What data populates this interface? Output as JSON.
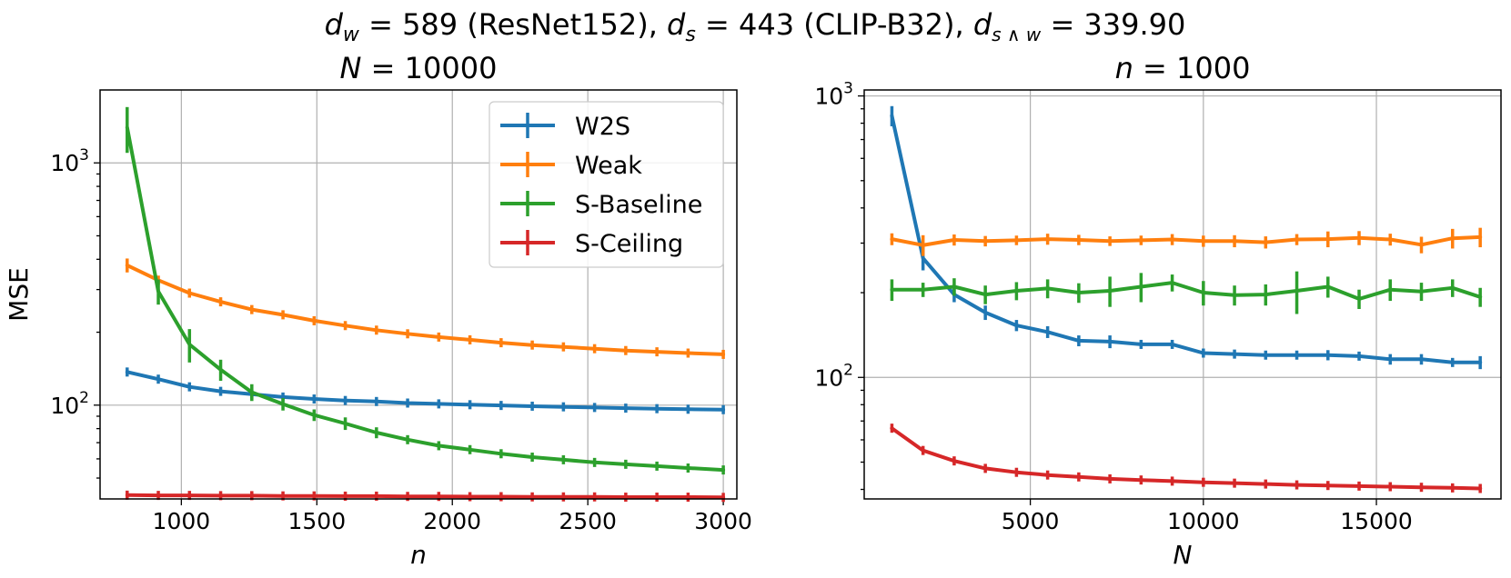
{
  "figure_title": {
    "dw_label": "d",
    "dw_sub": "w",
    "dw_value": " = 589 (ResNet152), ",
    "ds_label": "d",
    "ds_sub": "s",
    "ds_value": " = 443 (CLIP-B32), ",
    "dsw_label": "d",
    "dsw_sub": "s ∧ w",
    "dsw_value": " = 339.90"
  },
  "colors": {
    "W2S": "#1f77b4",
    "Weak": "#ff7f0e",
    "S-Baseline": "#2ca02c",
    "S-Ceiling": "#d62728"
  },
  "chart_data": [
    {
      "type": "line",
      "title_var": "N",
      "title_value": " = 10000",
      "xlabel": "n",
      "ylabel": "MSE",
      "yscale": "log",
      "xlim": [
        700,
        3050
      ],
      "ylim": [
        41,
        2000
      ],
      "xticks": [
        1000,
        1500,
        2000,
        2500,
        3000
      ],
      "xtick_labels": [
        "1000",
        "1500",
        "2000",
        "2500",
        "3000"
      ],
      "yticks": [
        {
          "value": 100,
          "base": "10",
          "exp": "2"
        },
        {
          "value": 1000,
          "base": "10",
          "exp": "3"
        }
      ],
      "legend": {
        "position": "top-right",
        "entries": [
          "W2S",
          "Weak",
          "S-Baseline",
          "S-Ceiling"
        ]
      },
      "x": [
        800,
        915,
        1030,
        1145,
        1260,
        1375,
        1490,
        1605,
        1720,
        1835,
        1950,
        2065,
        2180,
        2295,
        2410,
        2525,
        2640,
        2755,
        2870,
        3000
      ],
      "series": [
        {
          "name": "W2S",
          "values": [
            137,
            128,
            119,
            114,
            111,
            108,
            106,
            104.5,
            103.5,
            102,
            101.2,
            100.4,
            99.7,
            99,
            98.4,
            97.8,
            97.2,
            96.7,
            96.2,
            95.8
          ],
          "err": [
            4,
            4,
            3,
            2,
            2,
            2,
            1.5,
            1.5,
            1.5,
            1.5,
            1.5,
            1,
            1,
            1,
            1,
            1,
            1,
            1,
            1,
            1
          ]
        },
        {
          "name": "Weak",
          "values": [
            378,
            328,
            290,
            267,
            248,
            236,
            223,
            213,
            204,
            197,
            191,
            186,
            181,
            177,
            174,
            171,
            168,
            166,
            164,
            162
          ],
          "err": [
            25,
            14,
            12,
            9,
            8,
            8,
            6,
            5,
            5,
            4,
            4,
            3,
            3,
            3,
            3,
            2,
            2,
            2,
            2,
            2
          ]
        },
        {
          "name": "S-Baseline",
          "values": [
            1400,
            295,
            178,
            140,
            113,
            101,
            91,
            84,
            77,
            72,
            68,
            65.5,
            63,
            61,
            59.5,
            58,
            57,
            56,
            55,
            54
          ],
          "err": [
            300,
            35,
            28,
            14,
            9,
            6,
            5,
            5,
            4,
            3,
            2.5,
            2,
            1.5,
            1.5,
            1.2,
            1.2,
            1,
            1,
            1,
            1
          ]
        },
        {
          "name": "S-Ceiling",
          "values": [
            42.5,
            42.4,
            42.4,
            42.3,
            42.3,
            42.2,
            42.2,
            42.1,
            42.1,
            42.0,
            42.0,
            41.9,
            41.9,
            41.8,
            41.8,
            41.8,
            41.7,
            41.7,
            41.7,
            41.6
          ],
          "err": [
            0.3,
            0.3,
            0.3,
            0.3,
            0.3,
            0.3,
            0.3,
            0.3,
            0.3,
            0.3,
            0.3,
            0.3,
            0.3,
            0.3,
            0.3,
            0.3,
            0.3,
            0.3,
            0.3,
            0.3
          ]
        }
      ]
    },
    {
      "type": "line",
      "title_var": "n",
      "title_value": " = 1000",
      "xlabel": "N",
      "ylabel": "",
      "yscale": "log",
      "xlim": [
        200,
        18600
      ],
      "ylim": [
        37,
        1050
      ],
      "xticks": [
        5000,
        10000,
        15000
      ],
      "xtick_labels": [
        "5000",
        "10000",
        "15000"
      ],
      "yticks": [
        {
          "value": 100,
          "base": "10",
          "exp": "2"
        },
        {
          "value": 1000,
          "base": "10",
          "exp": "3"
        }
      ],
      "legend": null,
      "x": [
        1000,
        1900,
        2800,
        3700,
        4600,
        5500,
        6400,
        7300,
        8200,
        9100,
        10000,
        10900,
        11800,
        12700,
        13600,
        14500,
        15400,
        16300,
        17200,
        18000
      ],
      "series": [
        {
          "name": "W2S",
          "values": [
            850,
            265,
            197,
            170,
            153,
            145,
            135,
            134,
            131,
            131,
            122,
            121,
            120,
            120,
            120,
            119,
            116,
            116,
            113,
            113
          ],
          "err": [
            70,
            25,
            12,
            10,
            7,
            7,
            6,
            7,
            4,
            3,
            4,
            4,
            4,
            4,
            5,
            4,
            5,
            5,
            4,
            6
          ]
        },
        {
          "name": "Weak",
          "values": [
            310,
            295,
            308,
            305,
            307,
            310,
            308,
            305,
            307,
            309,
            305,
            305,
            302,
            309,
            310,
            313,
            309,
            296,
            312,
            315
          ],
          "err": [
            15,
            25,
            14,
            13,
            12,
            14,
            13,
            12,
            12,
            14,
            14,
            15,
            15,
            14,
            20,
            18,
            15,
            20,
            25,
            25
          ]
        },
        {
          "name": "S-Baseline",
          "values": [
            205,
            205,
            210,
            197,
            203,
            207,
            200,
            203,
            210,
            217,
            200,
            196,
            197,
            203,
            210,
            190,
            205,
            202,
            208,
            193
          ],
          "err": [
            18,
            12,
            15,
            15,
            15,
            16,
            16,
            25,
            25,
            15,
            20,
            16,
            17,
            35,
            18,
            15,
            18,
            15,
            15,
            15
          ]
        },
        {
          "name": "S-Ceiling",
          "values": [
            66,
            55,
            50.5,
            47.5,
            46,
            45,
            44.3,
            43.6,
            43.2,
            42.8,
            42.4,
            42.1,
            41.8,
            41.5,
            41.3,
            41.1,
            40.9,
            40.7,
            40.5,
            40.3
          ],
          "err": [
            2,
            0.8,
            0.6,
            0.5,
            0.4,
            0.3,
            0.3,
            0.3,
            0.3,
            0.3,
            0.3,
            0.3,
            0.3,
            0.3,
            0.3,
            0.3,
            0.3,
            0.3,
            0.3,
            0.3
          ]
        }
      ]
    }
  ]
}
